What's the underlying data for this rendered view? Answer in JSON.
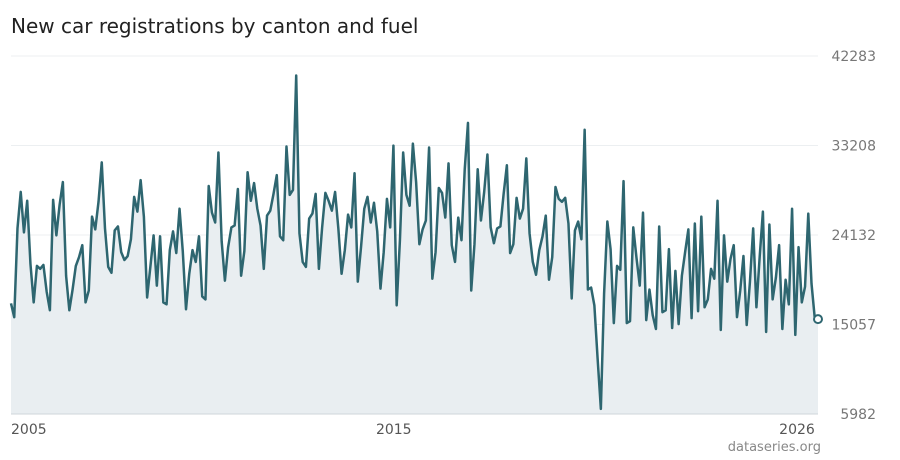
{
  "chart_data": {
    "type": "area",
    "title": "New car registrations by canton and fuel",
    "xlabel": "",
    "ylabel": "",
    "x_start": "2005-01",
    "x_end": "2026-02",
    "x_ticks": [
      "2005",
      "2015",
      "2026"
    ],
    "y_ticks": [
      "5982",
      "15057",
      "24132",
      "33208",
      "42283"
    ],
    "ylim": [
      5982,
      42283
    ],
    "grid": "horizontal",
    "legend": "none",
    "line_color": "#2e6670",
    "fill_color": "#e9eef1",
    "values": [
      17200,
      15800,
      24800,
      28500,
      24400,
      27600,
      21200,
      17300,
      21000,
      20700,
      21100,
      18400,
      16500,
      27700,
      24100,
      27200,
      29500,
      20000,
      16500,
      18600,
      21000,
      21900,
      23100,
      17300,
      18500,
      26000,
      24700,
      27500,
      31500,
      24800,
      20900,
      20300,
      24600,
      25000,
      22400,
      21600,
      22000,
      23700,
      28000,
      26500,
      29700,
      26000,
      17800,
      20900,
      24100,
      19000,
      24000,
      17300,
      17100,
      22600,
      24500,
      22300,
      26800,
      22500,
      16600,
      20200,
      22600,
      21400,
      24000,
      17900,
      17600,
      29100,
      26400,
      25400,
      32500,
      23500,
      19500,
      22900,
      24900,
      25100,
      28800,
      20000,
      22500,
      30500,
      27600,
      29400,
      26800,
      25100,
      20700,
      26100,
      26600,
      28300,
      30200,
      24000,
      23600,
      33100,
      28200,
      28700,
      40300,
      24300,
      21400,
      20900,
      25800,
      26300,
      28300,
      20700,
      24900,
      28400,
      27600,
      26600,
      28500,
      24800,
      20200,
      22600,
      26200,
      24900,
      30400,
      19400,
      22900,
      26800,
      28000,
      25400,
      27400,
      24500,
      18700,
      22400,
      27800,
      24900,
      33200,
      17000,
      23600,
      32500,
      28200,
      27100,
      33400,
      29500,
      23200,
      24700,
      25600,
      33000,
      19700,
      22400,
      28900,
      28400,
      25900,
      31400,
      23100,
      21400,
      25900,
      23600,
      30800,
      35500,
      18500,
      23200,
      30800,
      25600,
      28500,
      32300,
      24900,
      23300,
      24800,
      25000,
      28300,
      31200,
      22300,
      23200,
      27900,
      25800,
      26800,
      31900,
      24300,
      21400,
      20100,
      22600,
      24000,
      26100,
      19600,
      21900,
      29000,
      27800,
      27500,
      27900,
      25300,
      17700,
      24600,
      25500,
      23700,
      34800,
      18600,
      18800,
      17000,
      11600,
      6500,
      18200,
      25500,
      22700,
      15200,
      21000,
      20600,
      29600,
      15200,
      15400,
      24900,
      21800,
      19000,
      26400,
      15500,
      18600,
      16000,
      14600,
      25000,
      16300,
      16500,
      22700,
      14700,
      20500,
      15100,
      20000,
      22400,
      24700,
      15700,
      25300,
      16400,
      26000,
      16800,
      17600,
      20700,
      19700,
      27600,
      14500,
      24100,
      19400,
      21700,
      23100,
      15800,
      18500,
      22000,
      15000,
      19400,
      24800,
      16800,
      21900,
      26500,
      14300,
      25200,
      17600,
      19800,
      23100,
      14600,
      19600,
      17100,
      26800,
      14000,
      22900,
      17300,
      18900,
      26300,
      19200,
      15700,
      15600
    ]
  },
  "credit": "dataseries.org"
}
